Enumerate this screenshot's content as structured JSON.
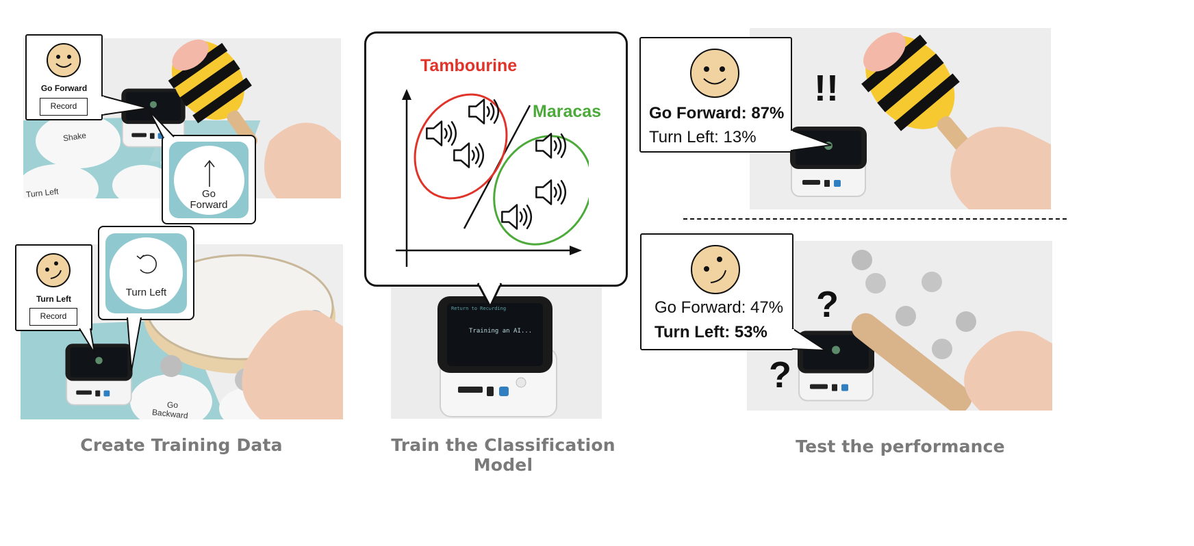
{
  "create_section": {
    "caption": "Create Training Data",
    "class_one": {
      "name": "Go Forward",
      "record_label": "Record",
      "card_label_line1": "Go",
      "card_label_line2": "Forward"
    },
    "class_two": {
      "name": "Turn Left",
      "record_label": "Record",
      "card_label": "Turn Left"
    },
    "mat_labels": {
      "shake": "Shake",
      "turn_left": "Turn Left",
      "go_backward_line1": "Go",
      "go_backward_line2": "Backward"
    }
  },
  "train_section": {
    "caption": "Train the Classification Model",
    "class_a": {
      "name": "Tambourine",
      "color": "#e0342a"
    },
    "class_b": {
      "name": "Maracas",
      "color": "#4caa3a"
    },
    "device_screen_lines": [
      "Return to Recording",
      "Training an AI..."
    ]
  },
  "test_section": {
    "caption": "Test the performance",
    "top": {
      "go_forward": "Go Forward: 87%",
      "turn_left": "Turn Left: 13%",
      "reaction": "!!"
    },
    "bottom": {
      "go_forward": "Go Forward: 47%",
      "turn_left": "Turn Left: 53%",
      "reaction_a": "?",
      "reaction_b": "?"
    }
  },
  "colors": {
    "tile_teal": "#8fc9cf",
    "face_fill": "#f1d3a2",
    "caption_gray": "#7a7a7a"
  }
}
